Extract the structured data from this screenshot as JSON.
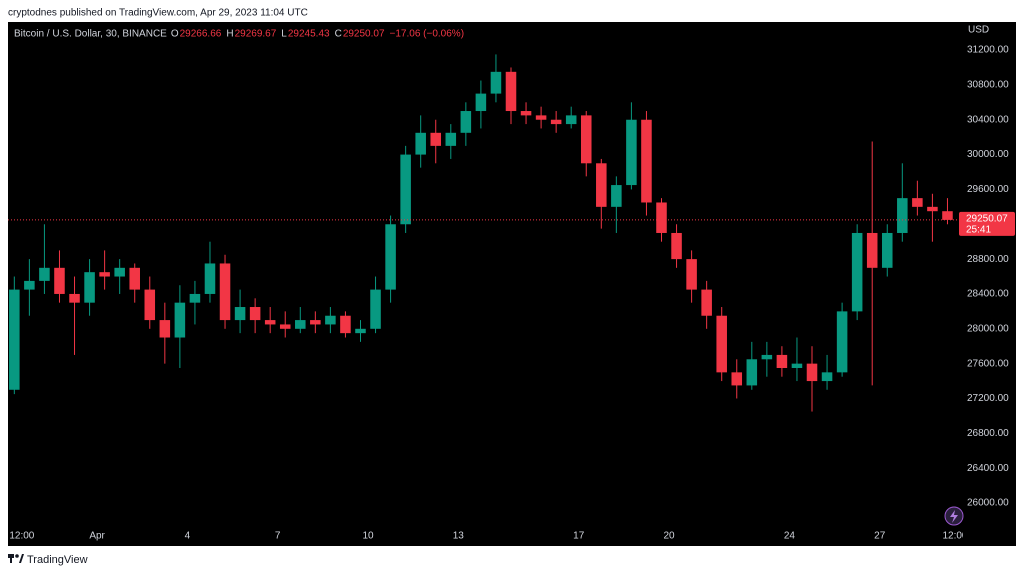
{
  "header": {
    "publisher": "cryptodnes published on TradingView.com, Apr 29, 2023 11:04 UTC",
    "footer": "TradingView"
  },
  "chart_data": {
    "type": "candlestick",
    "symbol": "Bitcoin / U.S. Dollar, 30, BINANCE",
    "ohlc_legend": [
      {
        "label": "O",
        "value": "29266.66"
      },
      {
        "label": "H",
        "value": "29269.67"
      },
      {
        "label": "L",
        "value": "29245.43"
      },
      {
        "label": "C",
        "value": "29250.07"
      }
    ],
    "change": "−17.06 (−0.06%)",
    "y_axis_label": "USD",
    "last_price": 29250.07,
    "countdown": "25:41",
    "up_color": "#089981",
    "down_color": "#f23645",
    "x": [
      -2.75,
      -2.25,
      -1.75,
      -1.25,
      -0.75,
      -0.25,
      0.25,
      0.75,
      1.25,
      1.75,
      2.25,
      2.75,
      3.25,
      3.75,
      4.25,
      4.75,
      5.25,
      5.75,
      6.25,
      6.75,
      7.25,
      7.75,
      8.25,
      8.75,
      9.25,
      9.75,
      10.25,
      10.75,
      11.25,
      11.75,
      12.25,
      12.75,
      13.25,
      13.75,
      14.25,
      14.75,
      15.25,
      15.75,
      16.25,
      16.75,
      17.25,
      17.75,
      18.25,
      18.75,
      19.25,
      19.75,
      20.25,
      20.75,
      21.25,
      21.75,
      22.25,
      22.75,
      23.25,
      23.75,
      24.25,
      24.75,
      25.25,
      25.75,
      26.25,
      26.75,
      27.25,
      27.75,
      28.25
    ],
    "open": [
      27300,
      28450,
      28550,
      28700,
      28400,
      28300,
      28650,
      28600,
      28700,
      28450,
      28100,
      27900,
      28300,
      28400,
      28750,
      28100,
      28250,
      28100,
      28050,
      28000,
      28100,
      28050,
      28150,
      27950,
      28000,
      28450,
      29200,
      30000,
      30250,
      30100,
      30250,
      30500,
      30700,
      30950,
      30500,
      30450,
      30400,
      30350,
      30450,
      29900,
      29400,
      29650,
      30400,
      29450,
      29100,
      28800,
      28450,
      28150,
      27500,
      27350,
      27650,
      27700,
      27550,
      27600,
      27400,
      27500,
      28200,
      29100,
      28700,
      29100,
      29500,
      29400,
      29350
    ],
    "high": [
      28600,
      28800,
      29200,
      28900,
      28600,
      28800,
      28900,
      28800,
      28750,
      28600,
      28300,
      28500,
      28550,
      29000,
      28850,
      28450,
      28350,
      28250,
      28200,
      28250,
      28200,
      28250,
      28200,
      28100,
      28600,
      29300,
      30100,
      30450,
      30400,
      30350,
      30600,
      30850,
      31150,
      31000,
      30600,
      30550,
      30500,
      30550,
      30500,
      29950,
      29750,
      30600,
      30500,
      29500,
      29200,
      28900,
      28550,
      28250,
      27650,
      27850,
      27850,
      27800,
      27900,
      27800,
      27700,
      28300,
      29200,
      30150,
      29200,
      29900,
      29700,
      29550,
      29500
    ],
    "low": [
      27250,
      28150,
      28400,
      28300,
      27700,
      28150,
      28450,
      28400,
      28300,
      28000,
      27600,
      27550,
      28050,
      28300,
      28000,
      27950,
      27950,
      27950,
      27900,
      27950,
      27950,
      27950,
      27900,
      27850,
      27950,
      28300,
      29100,
      29850,
      29900,
      29950,
      30100,
      30300,
      30600,
      30350,
      30350,
      30300,
      30250,
      30300,
      29750,
      29150,
      29100,
      29600,
      29300,
      29000,
      28700,
      28300,
      28000,
      27400,
      27200,
      27300,
      27450,
      27450,
      27400,
      27050,
      27300,
      27450,
      28100,
      27350,
      28600,
      29000,
      29300,
      29000,
      29200
    ],
    "close": [
      28450,
      28550,
      28700,
      28400,
      28300,
      28650,
      28600,
      28700,
      28450,
      28100,
      27900,
      28300,
      28400,
      28750,
      28100,
      28250,
      28100,
      28050,
      28000,
      28100,
      28050,
      28150,
      27950,
      28000,
      28450,
      29200,
      30000,
      30250,
      30100,
      30250,
      30500,
      30700,
      30950,
      30500,
      30450,
      30400,
      30350,
      30450,
      29900,
      29400,
      29650,
      30400,
      29450,
      29100,
      28800,
      28450,
      28150,
      27500,
      27350,
      27650,
      27700,
      27550,
      27600,
      27400,
      27500,
      28200,
      29100,
      28700,
      29100,
      29500,
      29400,
      29350,
      29250.07
    ],
    "xlim": [
      -2.96,
      28.6
    ],
    "ylim": [
      25518,
      31522
    ],
    "xticks": [
      {
        "value": -2.5,
        "label": "12:00"
      },
      {
        "value": 0,
        "label": "Apr"
      },
      {
        "value": 3,
        "label": "4"
      },
      {
        "value": 6,
        "label": "7"
      },
      {
        "value": 9,
        "label": "10"
      },
      {
        "value": 12,
        "label": "13"
      },
      {
        "value": 16,
        "label": "17"
      },
      {
        "value": 19,
        "label": "20"
      },
      {
        "value": 23,
        "label": "24"
      },
      {
        "value": 26,
        "label": "27"
      },
      {
        "value": 28.5,
        "label": "12:00"
      }
    ],
    "yticks": [
      {
        "value": 26000,
        "label": "26000.00"
      },
      {
        "value": 26400,
        "label": "26400.00"
      },
      {
        "value": 26800,
        "label": "26800.00"
      },
      {
        "value": 27200,
        "label": "27200.00"
      },
      {
        "value": 27600,
        "label": "27600.00"
      },
      {
        "value": 28000,
        "label": "28000.00"
      },
      {
        "value": 28400,
        "label": "28400.00"
      },
      {
        "value": 28800,
        "label": "28800.00"
      },
      {
        "value": 29200,
        "label": "29200.00"
      },
      {
        "value": 29600,
        "label": "29600.00"
      },
      {
        "value": 30000,
        "label": "30000.00"
      },
      {
        "value": 30400,
        "label": "30400.00"
      },
      {
        "value": 30800,
        "label": "30800.00"
      },
      {
        "value": 31200,
        "label": "31200.00"
      }
    ],
    "grid": false
  }
}
